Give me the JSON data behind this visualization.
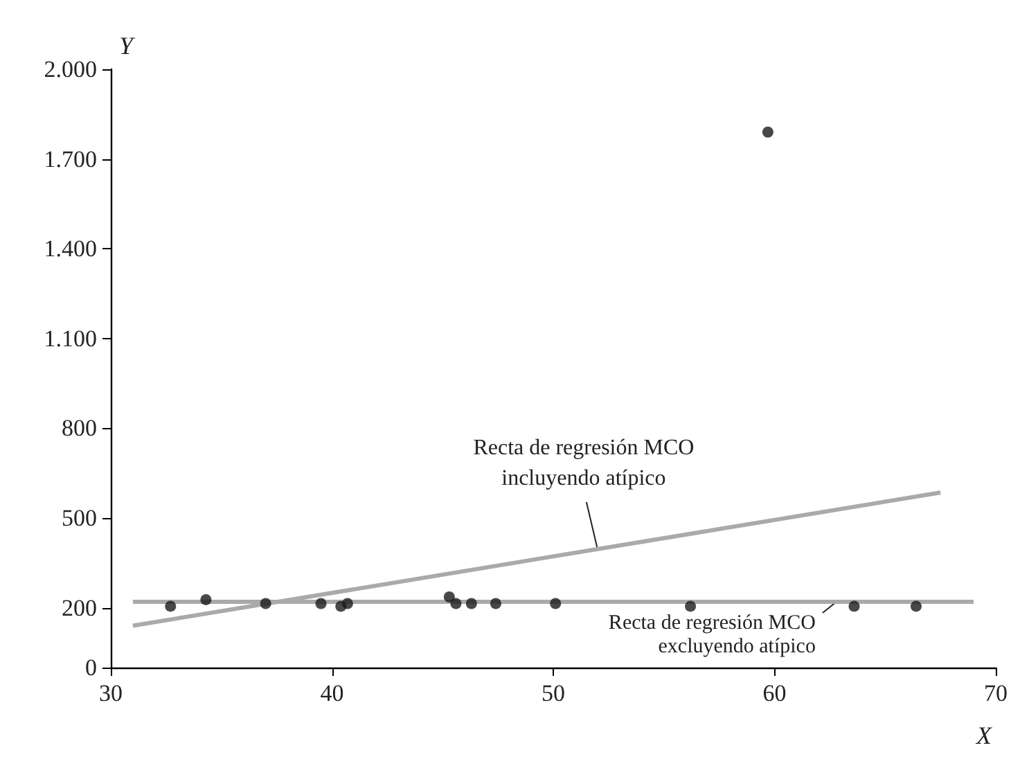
{
  "chart_data": {
    "type": "scatter",
    "xlabel": "X",
    "ylabel": "Y",
    "x": [
      32.7,
      34.3,
      37.0,
      39.5,
      40.4,
      40.7,
      45.3,
      45.6,
      46.3,
      47.4,
      50.1,
      56.2,
      59.7,
      63.6,
      66.4
    ],
    "series": [
      {
        "color": "#1a1a1a",
        "values": [
          205,
          227,
          214,
          214,
          205,
          214,
          236,
          214,
          214,
          214,
          214,
          205,
          1790,
          205,
          205
        ]
      },
      {
        "type": "line",
        "marker": "none",
        "color": "#aaaaaa",
        "x": [
          31,
          67.5
        ],
        "values": [
          140,
          585
        ]
      },
      {
        "type": "line",
        "marker": "none",
        "color": "#aaaaaa",
        "x": [
          31,
          69
        ],
        "values": [
          220,
          220
        ]
      }
    ],
    "xlim": [
      30,
      70
    ],
    "xticks": [
      30,
      40,
      50,
      60,
      70
    ],
    "ylim": [
      0,
      2000
    ],
    "yticks": [
      0,
      200,
      500,
      800,
      {
        "value": 1100,
        "label": "1.100"
      },
      {
        "value": 1400,
        "label": "1.400"
      },
      {
        "value": 1700,
        "label": "1.700"
      },
      {
        "value": 2000,
        "label": "2.000"
      }
    ],
    "grid": false,
    "marker": "circle",
    "annotations": [
      {
        "text": "Recta de regresión MCO\nincluyendo atípico",
        "x": 52,
        "y": 396
      },
      {
        "text": "Recta de regresión MCO\nexcluyendo atípico",
        "x": 62.8,
        "y": 220
      }
    ]
  }
}
